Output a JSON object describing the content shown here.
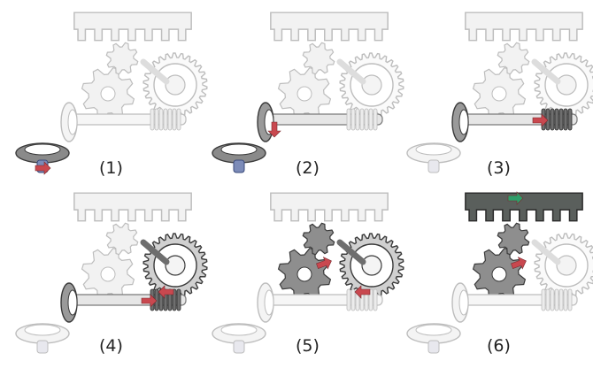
{
  "figure": {
    "description_labels": [
      "(1)",
      "(2)",
      "(3)",
      "(4)",
      "(5)",
      "(6)"
    ]
  },
  "panels": [
    {
      "label": "(1)",
      "highlight": "bevel-gear-pair",
      "arrows": [
        "pinion-rotation"
      ]
    },
    {
      "label": "(2)",
      "highlight": "bevel-gear-on-shaft",
      "arrows": [
        "gear-rotation"
      ]
    },
    {
      "label": "(3)",
      "highlight": "worm-shaft",
      "arrows": [
        "worm-rotation"
      ]
    },
    {
      "label": "(4)",
      "highlight": "worm-wheel",
      "arrows": [
        "wheel-rotation",
        "worm-rotation"
      ]
    },
    {
      "label": "(5)",
      "highlight": "spur-gears",
      "arrows": [
        "spur-rotation",
        "wheel-rotation"
      ]
    },
    {
      "label": "(6)",
      "highlight": "rack",
      "arrows": [
        "rack-translation",
        "spur-rotation"
      ]
    }
  ],
  "colors": {
    "ghost_fill": "#f2f2f2",
    "ghost_stroke": "#bdbdbd",
    "active_fill": "#8e8e8e",
    "active_stroke": "#3a3a3a",
    "arrow_red": "#c9484f",
    "arrow_green": "#2f9e6a",
    "rack_dark": "#5a5f5c"
  }
}
